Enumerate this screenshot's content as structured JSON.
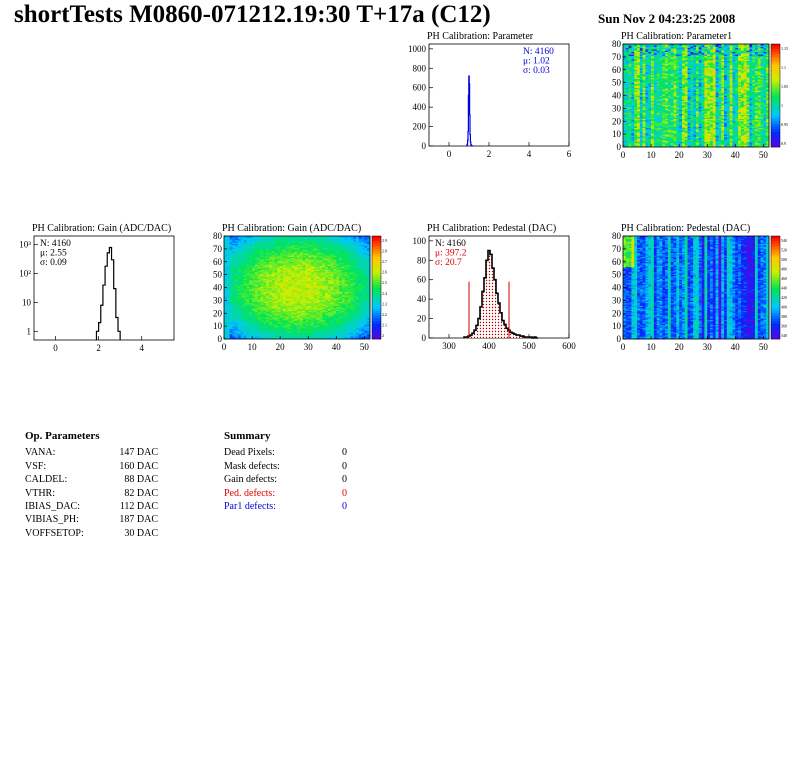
{
  "header": {
    "title": "shortTests M0860-071212.19:30 T+17a (C12)",
    "date": "Sun Nov  2 04:23:25 2008"
  },
  "chart_data": [
    {
      "id": "parameter",
      "type": "histogram",
      "title": "PH Calibration: Parameter",
      "xlim": [
        -1,
        6
      ],
      "ylim": [
        0,
        1050
      ],
      "xticks": [
        0,
        2,
        4,
        6
      ],
      "yticks": [
        0,
        200,
        400,
        600,
        800,
        1000
      ],
      "line_color": "#0000dd",
      "x": [
        0.9,
        0.92,
        0.94,
        0.96,
        0.98,
        1.0,
        1.02,
        1.04,
        1.06,
        1.08,
        1.1,
        1.12,
        1.14,
        1.16
      ],
      "values": [
        5,
        18,
        60,
        150,
        520,
        720,
        640,
        320,
        120,
        40,
        15,
        6,
        3,
        1
      ],
      "stats": [
        {
          "label": "N:",
          "value": "4160"
        },
        {
          "label": "μ:",
          "value": "1.02"
        },
        {
          "label": "σ:",
          "value": "0.03"
        }
      ],
      "stats_color": "#0000dd"
    },
    {
      "id": "parameter1",
      "type": "heatmap",
      "title": "PH Calibration: Parameter1",
      "xlim": [
        0,
        52
      ],
      "ylim": [
        0,
        80
      ],
      "xticks": [
        0,
        10,
        20,
        30,
        40,
        50
      ],
      "yticks": [
        0,
        10,
        20,
        30,
        40,
        50,
        60,
        70,
        80
      ],
      "palette": "greenish",
      "seed": 11,
      "zticks": [
        "1.15",
        "1.1",
        "1.05",
        "1",
        "0.95",
        "0.9"
      ]
    },
    {
      "id": "gain_hist",
      "type": "histogram",
      "title": "PH Calibration: Gain (ADC/DAC)",
      "log_y": true,
      "xlim": [
        -1,
        5.5
      ],
      "ylim": [
        0.5,
        2000
      ],
      "xticks": [
        0,
        2,
        4
      ],
      "yticks": [
        1,
        10,
        100,
        1000
      ],
      "ytick_labels": [
        "1",
        "10",
        "10²",
        "10³"
      ],
      "line_color": "#000000",
      "x": [
        1.95,
        2.05,
        2.15,
        2.25,
        2.35,
        2.45,
        2.55,
        2.65,
        2.75,
        2.85,
        2.95
      ],
      "values": [
        1,
        2,
        8,
        40,
        180,
        520,
        800,
        300,
        30,
        3,
        1
      ],
      "stats": [
        {
          "label": "N:",
          "value": "4160"
        },
        {
          "label": "μ:",
          "value": "2.55"
        },
        {
          "label": "σ:",
          "value": "0.09"
        }
      ],
      "stats_color": "#000000"
    },
    {
      "id": "gain_map",
      "type": "heatmap",
      "title": "PH Calibration: Gain (ADC/DAC)",
      "xlim": [
        0,
        52
      ],
      "ylim": [
        0,
        80
      ],
      "xticks": [
        0,
        10,
        20,
        30,
        40,
        50
      ],
      "yticks": [
        0,
        10,
        20,
        30,
        40,
        50,
        60,
        70,
        80
      ],
      "palette": "yellowish",
      "seed": 29,
      "zticks": [
        "2.9",
        "2.8",
        "2.7",
        "2.6",
        "2.5",
        "2.4",
        "2.3",
        "2.2",
        "2.1",
        "2"
      ]
    },
    {
      "id": "pedestal_hist",
      "type": "histogram",
      "title": "PH Calibration: Pedestal (DAC)",
      "xlim": [
        250,
        600
      ],
      "ylim": [
        0,
        105
      ],
      "xticks": [
        300,
        400,
        500,
        600
      ],
      "yticks": [
        0,
        20,
        40,
        60,
        80,
        100
      ],
      "line_color": "#000000",
      "fill_hatch": true,
      "x": [
        340,
        345,
        350,
        355,
        360,
        365,
        370,
        375,
        380,
        385,
        390,
        395,
        400,
        405,
        410,
        415,
        420,
        425,
        430,
        435,
        440,
        445,
        450,
        455,
        460,
        465,
        470,
        475,
        480,
        485,
        490,
        495,
        500,
        505,
        510,
        515,
        520
      ],
      "values": [
        1,
        1,
        2,
        3,
        5,
        8,
        13,
        20,
        32,
        48,
        62,
        80,
        90,
        86,
        72,
        60,
        46,
        36,
        26,
        18,
        14,
        10,
        8,
        6,
        5,
        4,
        3,
        3,
        2,
        2,
        1,
        1,
        1,
        1,
        0,
        1,
        0
      ],
      "cut_lines": [
        350,
        450
      ],
      "cut_height": 58,
      "cut_color": "#d00000",
      "stats": [
        {
          "label": "N:",
          "value": "4160"
        },
        {
          "label": "μ:",
          "value": "397.2"
        },
        {
          "label": "σ:",
          "value": "20.7"
        }
      ],
      "stats_color": "#e00000"
    },
    {
      "id": "pedestal_map",
      "type": "heatmap",
      "title": "PH Calibration: Pedestal (DAC)",
      "xlim": [
        0,
        52
      ],
      "ylim": [
        0,
        80
      ],
      "xticks": [
        0,
        10,
        20,
        30,
        40,
        50
      ],
      "yticks": [
        0,
        10,
        20,
        30,
        40,
        50,
        60,
        70,
        80
      ],
      "palette": "bluish",
      "seed": 53,
      "zticks": [
        "540",
        "520",
        "500",
        "480",
        "460",
        "440",
        "420",
        "400",
        "380",
        "360",
        "340"
      ]
    }
  ],
  "op_parameters": {
    "heading": "Op. Parameters",
    "rows": [
      {
        "name": "VANA:",
        "value": "147 DAC"
      },
      {
        "name": "VSF:",
        "value": "160 DAC"
      },
      {
        "name": "CALDEL:",
        "value": "88 DAC"
      },
      {
        "name": "VTHR:",
        "value": "82 DAC"
      },
      {
        "name": "IBIAS_DAC:",
        "value": "112 DAC"
      },
      {
        "name": "VIBIAS_PH:",
        "value": "187 DAC"
      },
      {
        "name": "VOFFSETOP:",
        "value": "30 DAC"
      }
    ]
  },
  "summary": {
    "heading": "Summary",
    "rows": [
      {
        "name": "Dead Pixels:",
        "value": "0",
        "color": "#000000"
      },
      {
        "name": "Mask defects:",
        "value": "0",
        "color": "#000000"
      },
      {
        "name": "Gain defects:",
        "value": "0",
        "color": "#000000"
      },
      {
        "name": "Ped. defects:",
        "value": "0",
        "color": "#e00000"
      },
      {
        "name": "Par1 defects:",
        "value": "0",
        "color": "#0000dd"
      }
    ]
  }
}
